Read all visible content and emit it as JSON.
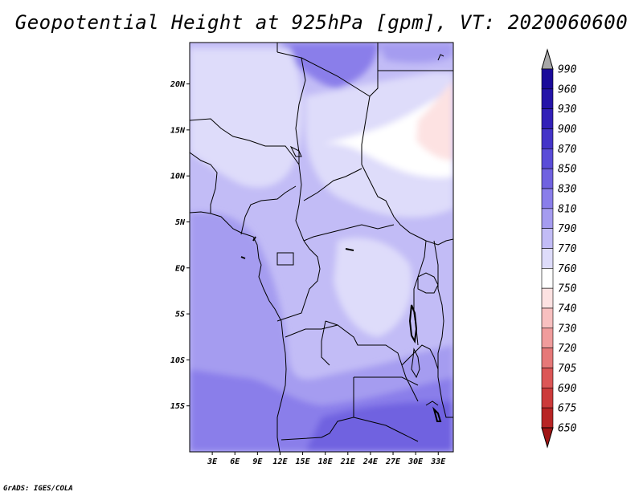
{
  "title": "Geopotential Height at 925hPa [gpm], VT: 2020060600",
  "credit": "GrADS: IGES/COLA",
  "map": {
    "lat_range": [
      -20,
      24.5
    ],
    "lon_range": [
      0,
      35
    ],
    "lat_ticks": [
      "20N",
      "15N",
      "10N",
      "5N",
      "EQ",
      "5S",
      "10S",
      "15S"
    ],
    "lon_ticks": [
      "3E",
      "6E",
      "9E",
      "12E",
      "15E",
      "18E",
      "21E",
      "24E",
      "27E",
      "30E",
      "33E"
    ],
    "field_summary": "Mostly 790-850 gpm over the domain; lowest values (750-770 gpm) in the northeast near 10-20N, 27-35E; highest (850-870 gpm) in the far south and a small pocket near the northern boundary"
  },
  "colorbar": {
    "labels": [
      "990",
      "960",
      "930",
      "900",
      "870",
      "850",
      "830",
      "810",
      "790",
      "770",
      "760",
      "750",
      "740",
      "730",
      "720",
      "705",
      "690",
      "675",
      "650"
    ],
    "colors": [
      "#1a0a9a",
      "#2414a8",
      "#3220b8",
      "#4434c8",
      "#5a4cd8",
      "#7062e0",
      "#8a7eea",
      "#a59cf0",
      "#c2bcf6",
      "#dedcfa",
      "#ffffff",
      "#fde2e2",
      "#f8c0c0",
      "#f09c9c",
      "#e67878",
      "#dc5656",
      "#cc3a3a",
      "#b82424",
      "#a01414"
    ]
  }
}
